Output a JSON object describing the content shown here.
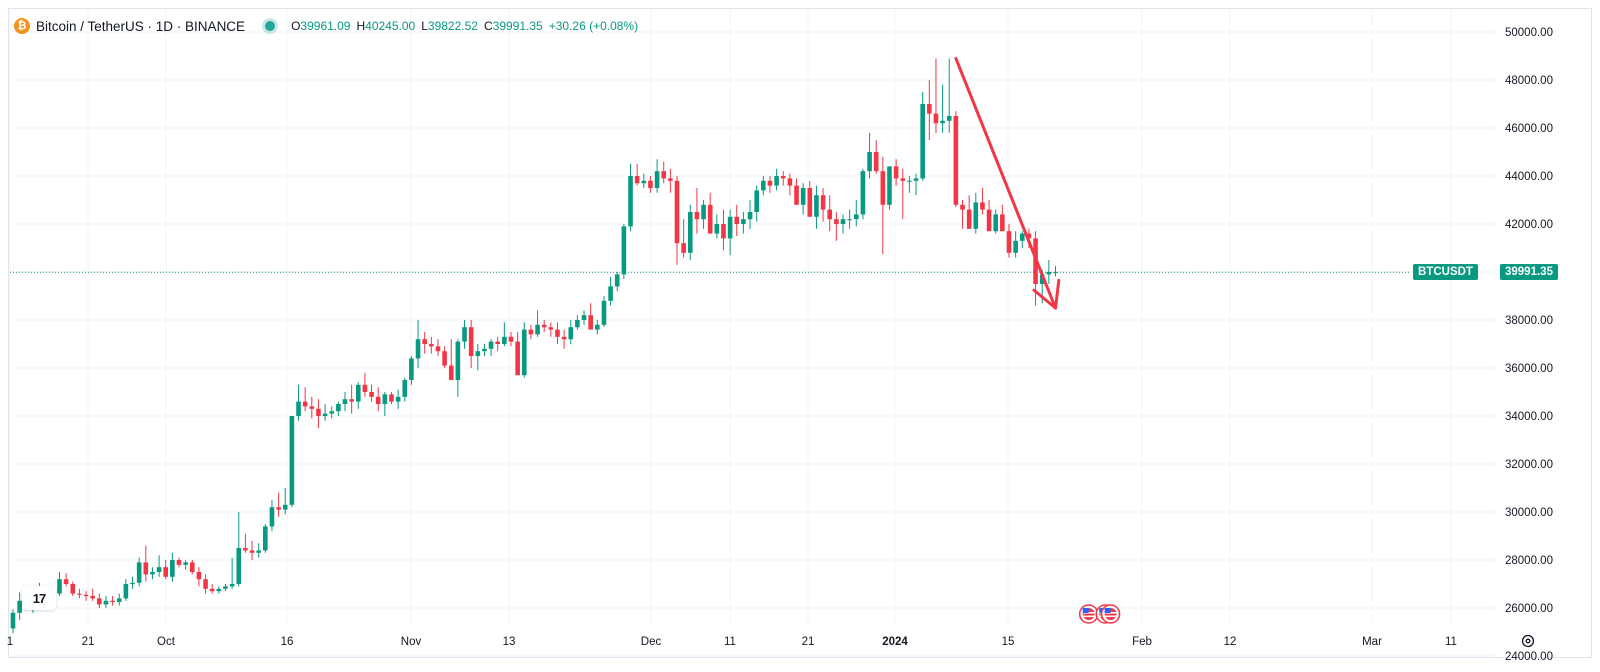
{
  "header": {
    "symbol": "Bitcoin / TetherUS · 1D · BINANCE",
    "open_label": "O",
    "open": "39961.09",
    "high_label": "H",
    "high": "40245.00",
    "low_label": "L",
    "low": "39822.52",
    "close_label": "C",
    "close": "39991.35",
    "change": "+30.26 (+0.08%)",
    "logo_glyph": "₿"
  },
  "price_tags": {
    "symbol": "BTCUSDT",
    "last_price": "39991.35"
  },
  "colors": {
    "up": "#089981",
    "down": "#f23645",
    "annotation": "#f23645",
    "grid": "#f0f3fa"
  },
  "tv_logo": "17",
  "chart_data": {
    "type": "candlestick",
    "ylim": [
      23000,
      51000
    ],
    "y_ticks": [
      "24000.00",
      "26000.00",
      "28000.00",
      "30000.00",
      "32000.00",
      "34000.00",
      "36000.00",
      "38000.00",
      "40000.00",
      "42000.00",
      "44000.00",
      "46000.00",
      "48000.00",
      "50000.00"
    ],
    "x_ticks": [
      "1",
      "21",
      "Oct",
      "16",
      "Nov",
      "13",
      "Dec",
      "11",
      "21",
      "2024",
      "15",
      "Feb",
      "12",
      "Mar",
      "11"
    ],
    "bold_x_ticks": [
      "2024"
    ],
    "last_price": 39991.35,
    "candles": [
      [
        25150,
        25950,
        24950,
        25800
      ],
      [
        25800,
        26650,
        25500,
        26300
      ],
      [
        26300,
        26500,
        25900,
        26050
      ],
      [
        26050,
        26900,
        25800,
        26600
      ],
      [
        26600,
        27050,
        26300,
        26800
      ],
      [
        26800,
        26900,
        26500,
        26700
      ],
      [
        26700,
        26850,
        26400,
        26600
      ],
      [
        26600,
        27500,
        26500,
        27200
      ],
      [
        27200,
        27450,
        26900,
        27000
      ],
      [
        27000,
        27100,
        26500,
        26600
      ],
      [
        26600,
        26800,
        26400,
        26550
      ],
      [
        26550,
        26700,
        26300,
        26500
      ],
      [
        26500,
        26800,
        26300,
        26400
      ],
      [
        26400,
        26600,
        26000,
        26150
      ],
      [
        26150,
        26500,
        26000,
        26300
      ],
      [
        26300,
        26500,
        26100,
        26250
      ],
      [
        26250,
        26600,
        26100,
        26400
      ],
      [
        26400,
        27200,
        26300,
        27000
      ],
      [
        27000,
        27300,
        26800,
        27050
      ],
      [
        27050,
        28100,
        26900,
        27900
      ],
      [
        27900,
        28600,
        27100,
        27400
      ],
      [
        27400,
        27700,
        27200,
        27500
      ],
      [
        27500,
        28200,
        27300,
        27700
      ],
      [
        27700,
        28000,
        27200,
        27300
      ],
      [
        27300,
        28300,
        27100,
        28000
      ],
      [
        28000,
        28100,
        27700,
        27800
      ],
      [
        27800,
        28000,
        27600,
        27900
      ],
      [
        27900,
        28000,
        27400,
        27500
      ],
      [
        27500,
        27700,
        26900,
        27200
      ],
      [
        27200,
        27400,
        26600,
        26800
      ],
      [
        26800,
        27000,
        26600,
        26700
      ],
      [
        26700,
        26900,
        26600,
        26800
      ],
      [
        26800,
        27000,
        26700,
        26900
      ],
      [
        26900,
        28100,
        26800,
        27000
      ],
      [
        27000,
        30000,
        26900,
        28500
      ],
      [
        28500,
        29100,
        28300,
        28400
      ],
      [
        28400,
        28800,
        28000,
        28300
      ],
      [
        28300,
        28700,
        28100,
        28400
      ],
      [
        28400,
        29500,
        28300,
        29400
      ],
      [
        29400,
        30500,
        29200,
        30200
      ],
      [
        30200,
        30800,
        29800,
        30100
      ],
      [
        30100,
        31000,
        29900,
        30300
      ],
      [
        30300,
        34000,
        30200,
        34000
      ],
      [
        34000,
        35300,
        33800,
        34600
      ],
      [
        34600,
        35200,
        34200,
        34400
      ],
      [
        34400,
        34800,
        33900,
        34300
      ],
      [
        34300,
        34700,
        33500,
        34000
      ],
      [
        34000,
        34500,
        33800,
        34100
      ],
      [
        34100,
        34400,
        33900,
        34200
      ],
      [
        34200,
        34600,
        34000,
        34500
      ],
      [
        34500,
        35000,
        34200,
        34700
      ],
      [
        34700,
        35300,
        34100,
        34600
      ],
      [
        34600,
        35400,
        34300,
        35300
      ],
      [
        35300,
        35800,
        34800,
        35000
      ],
      [
        35000,
        35300,
        34600,
        34800
      ],
      [
        34800,
        35200,
        34200,
        34500
      ],
      [
        34500,
        35000,
        34000,
        34900
      ],
      [
        34900,
        35000,
        34500,
        34600
      ],
      [
        34600,
        35100,
        34300,
        34800
      ],
      [
        34800,
        35600,
        34600,
        35500
      ],
      [
        35500,
        36500,
        35300,
        36400
      ],
      [
        36400,
        38000,
        36000,
        37200
      ],
      [
        37200,
        37500,
        36600,
        37000
      ],
      [
        37000,
        37300,
        36600,
        36900
      ],
      [
        36900,
        37200,
        36500,
        36700
      ],
      [
        36700,
        36900,
        36000,
        36100
      ],
      [
        36100,
        37200,
        35600,
        35500
      ],
      [
        35500,
        37200,
        34800,
        37100
      ],
      [
        37100,
        38000,
        36800,
        37700
      ],
      [
        37700,
        38000,
        36000,
        36500
      ],
      [
        36500,
        37000,
        35900,
        36700
      ],
      [
        36700,
        37000,
        36500,
        36800
      ],
      [
        36800,
        37200,
        36500,
        37100
      ],
      [
        37100,
        37300,
        36700,
        37000
      ],
      [
        37000,
        37900,
        36900,
        37300
      ],
      [
        37300,
        37500,
        36900,
        37100
      ],
      [
        37100,
        37500,
        35800,
        35700
      ],
      [
        35700,
        37900,
        35600,
        37600
      ],
      [
        37600,
        37800,
        37200,
        37400
      ],
      [
        37400,
        38400,
        37300,
        37800
      ],
      [
        37800,
        38000,
        37500,
        37700
      ],
      [
        37700,
        37900,
        37300,
        37600
      ],
      [
        37600,
        37900,
        37000,
        37300
      ],
      [
        37300,
        37600,
        36800,
        37200
      ],
      [
        37200,
        38000,
        37000,
        37700
      ],
      [
        37700,
        38200,
        37600,
        38000
      ],
      [
        38000,
        38400,
        37800,
        38200
      ],
      [
        38200,
        38700,
        37700,
        37600
      ],
      [
        37600,
        38000,
        37400,
        37800
      ],
      [
        37800,
        39000,
        37700,
        38800
      ],
      [
        38800,
        39800,
        38600,
        39400
      ],
      [
        39400,
        40000,
        39200,
        39900
      ],
      [
        39900,
        42000,
        39700,
        41900
      ],
      [
        41900,
        44500,
        41700,
        44000
      ],
      [
        44000,
        44500,
        43600,
        43700
      ],
      [
        43700,
        44100,
        43500,
        43800
      ],
      [
        43800,
        44000,
        43300,
        43500
      ],
      [
        43500,
        44700,
        43300,
        44200
      ],
      [
        44200,
        44600,
        43700,
        43900
      ],
      [
        43900,
        44300,
        43300,
        43800
      ],
      [
        43800,
        44000,
        40300,
        41200
      ],
      [
        41200,
        42200,
        40600,
        40800
      ],
      [
        40800,
        42800,
        40500,
        42500
      ],
      [
        42500,
        43500,
        41600,
        42200
      ],
      [
        42200,
        43000,
        41800,
        42800
      ],
      [
        42800,
        43300,
        41800,
        41600
      ],
      [
        41600,
        42400,
        41400,
        42000
      ],
      [
        42000,
        42600,
        40900,
        41400
      ],
      [
        41400,
        42600,
        40700,
        42300
      ],
      [
        42300,
        42800,
        41500,
        42000
      ],
      [
        42000,
        42500,
        41600,
        42200
      ],
      [
        42200,
        43000,
        41800,
        42500
      ],
      [
        42500,
        43600,
        42100,
        43400
      ],
      [
        43400,
        44000,
        43200,
        43800
      ],
      [
        43800,
        44000,
        43300,
        43600
      ],
      [
        43600,
        44300,
        43400,
        44000
      ],
      [
        44000,
        44200,
        43600,
        43900
      ],
      [
        43900,
        44100,
        43200,
        43600
      ],
      [
        43600,
        43900,
        42900,
        42800
      ],
      [
        42800,
        43700,
        42400,
        43500
      ],
      [
        43500,
        43800,
        42500,
        42300
      ],
      [
        42300,
        43600,
        41800,
        43200
      ],
      [
        43200,
        43500,
        42100,
        42600
      ],
      [
        42600,
        43200,
        41700,
        42200
      ],
      [
        42200,
        42500,
        41300,
        42000
      ],
      [
        42000,
        42400,
        41600,
        42200
      ],
      [
        42200,
        42600,
        41800,
        42200
      ],
      [
        42200,
        43000,
        41900,
        42400
      ],
      [
        42400,
        44300,
        42200,
        44200
      ],
      [
        44200,
        45800,
        43900,
        45000
      ],
      [
        45000,
        45500,
        44100,
        44200
      ],
      [
        44200,
        44800,
        40750,
        42800
      ],
      [
        42800,
        44400,
        42600,
        44400
      ],
      [
        44400,
        44700,
        43600,
        43900
      ],
      [
        43900,
        44300,
        42200,
        43800
      ],
      [
        43800,
        44000,
        43300,
        43800
      ],
      [
        43800,
        44100,
        43200,
        43900
      ],
      [
        43900,
        47500,
        43800,
        47000
      ],
      [
        47000,
        48000,
        45500,
        46600
      ],
      [
        46600,
        48900,
        45800,
        46200
      ],
      [
        46200,
        47800,
        45800,
        46300
      ],
      [
        46300,
        48900,
        45800,
        46500
      ],
      [
        46500,
        46700,
        42700,
        42800
      ],
      [
        42800,
        43000,
        41800,
        42600
      ],
      [
        42600,
        43200,
        41800,
        41800
      ],
      [
        41800,
        43300,
        41600,
        42900
      ],
      [
        42900,
        43500,
        42400,
        42600
      ],
      [
        42600,
        43000,
        41900,
        41700
      ],
      [
        41700,
        42600,
        41600,
        42400
      ],
      [
        42400,
        42800,
        41900,
        41700
      ],
      [
        41700,
        42000,
        40600,
        40800
      ],
      [
        40800,
        41700,
        40600,
        41300
      ],
      [
        41300,
        41700,
        41000,
        41600
      ],
      [
        41600,
        41800,
        41000,
        41400
      ],
      [
        41400,
        41700,
        38600,
        39500
      ],
      [
        39500,
        40100,
        38700,
        39900
      ],
      [
        39900,
        40500,
        39500,
        40000
      ],
      [
        39961.09,
        40245.0,
        39822.52,
        39991.35
      ]
    ],
    "annotations": [
      {
        "type": "arrow",
        "from": {
          "candle": 142,
          "price": 48900
        },
        "to": {
          "candle": 157,
          "price": 38500
        }
      }
    ],
    "event_markers": [
      {
        "candle": 162,
        "country": "US"
      },
      {
        "candle": 164.5,
        "country": "US"
      },
      {
        "candle": 165.3,
        "country": "US"
      }
    ]
  }
}
